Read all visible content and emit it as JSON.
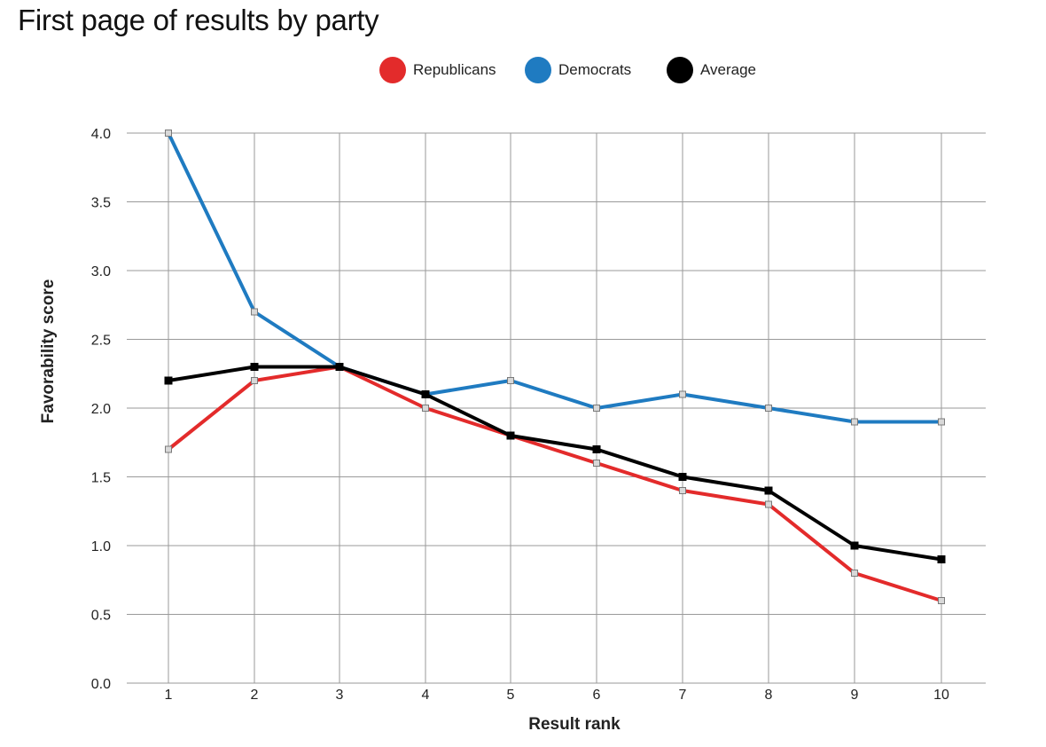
{
  "title": "First page of results by party",
  "legend": [
    {
      "label": "Republicans",
      "color": "#e32b2b"
    },
    {
      "label": "Democrats",
      "color": "#1f7bc1"
    },
    {
      "label": "Average",
      "color": "#000000"
    }
  ],
  "chart_data": {
    "type": "line",
    "title": "First page of results by party",
    "xlabel": "Result rank",
    "ylabel": "Favorability score",
    "x": [
      1,
      2,
      3,
      4,
      5,
      6,
      7,
      8,
      9,
      10
    ],
    "xticks": [
      "1",
      "2",
      "3",
      "4",
      "5",
      "6",
      "7",
      "8",
      "9",
      "10"
    ],
    "yticks": [
      "0.0",
      "0.5",
      "1.0",
      "1.5",
      "2.0",
      "2.5",
      "3.0",
      "3.5",
      "4.0"
    ],
    "ylim": [
      0,
      4
    ],
    "grid": true,
    "legend_position": "top-center",
    "series": [
      {
        "name": "Republicans",
        "color": "#e32b2b",
        "values": [
          1.7,
          2.2,
          2.3,
          2.0,
          1.8,
          1.6,
          1.4,
          1.3,
          0.8,
          0.6
        ]
      },
      {
        "name": "Democrats",
        "color": "#1f7bc1",
        "values": [
          4.0,
          2.7,
          2.3,
          2.1,
          2.2,
          2.0,
          2.1,
          2.0,
          1.9,
          1.9
        ]
      },
      {
        "name": "Average",
        "color": "#000000",
        "values": [
          2.2,
          2.3,
          2.3,
          2.1,
          1.8,
          1.7,
          1.5,
          1.4,
          1.0,
          0.9
        ]
      }
    ]
  }
}
